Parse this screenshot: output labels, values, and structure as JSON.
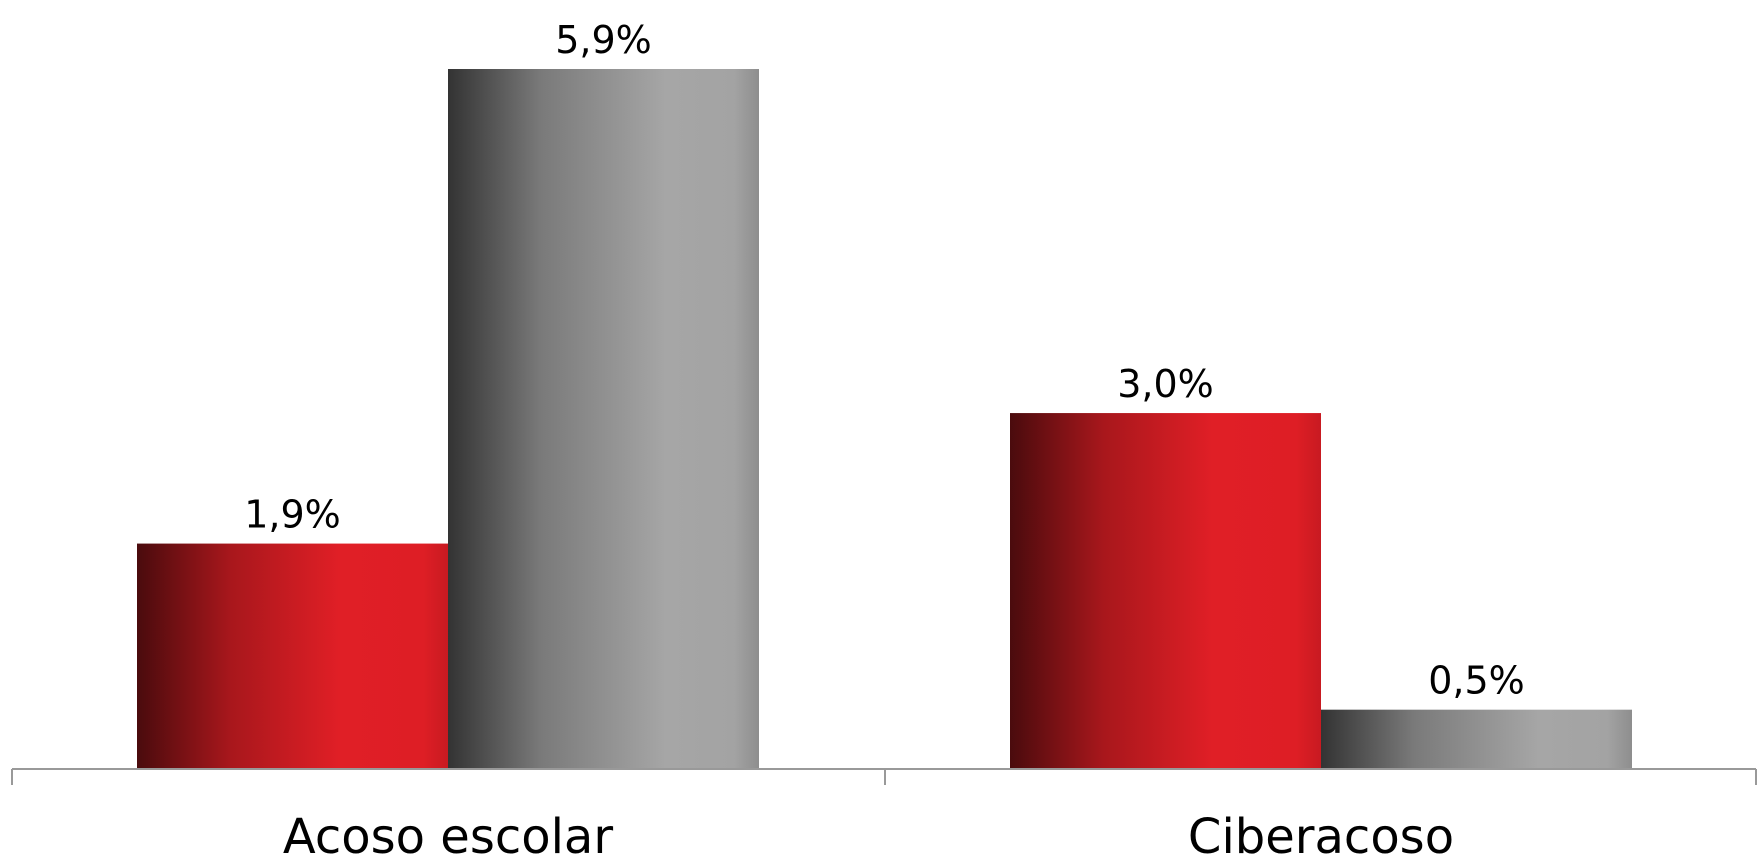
{
  "chart_data": {
    "type": "bar",
    "categories": [
      "Acoso escolar",
      "Ciberacoso"
    ],
    "series": [
      {
        "values": [
          1.9,
          3.0
        ],
        "labels": [
          "1,9%",
          "3,0%"
        ],
        "color": "#e01f26"
      },
      {
        "values": [
          5.9,
          0.5
        ],
        "labels": [
          "5,9%",
          "0,5%"
        ],
        "color": "#a6a6a6"
      }
    ],
    "ylim": [
      0,
      5.9
    ],
    "grid": false,
    "legend": "none"
  }
}
